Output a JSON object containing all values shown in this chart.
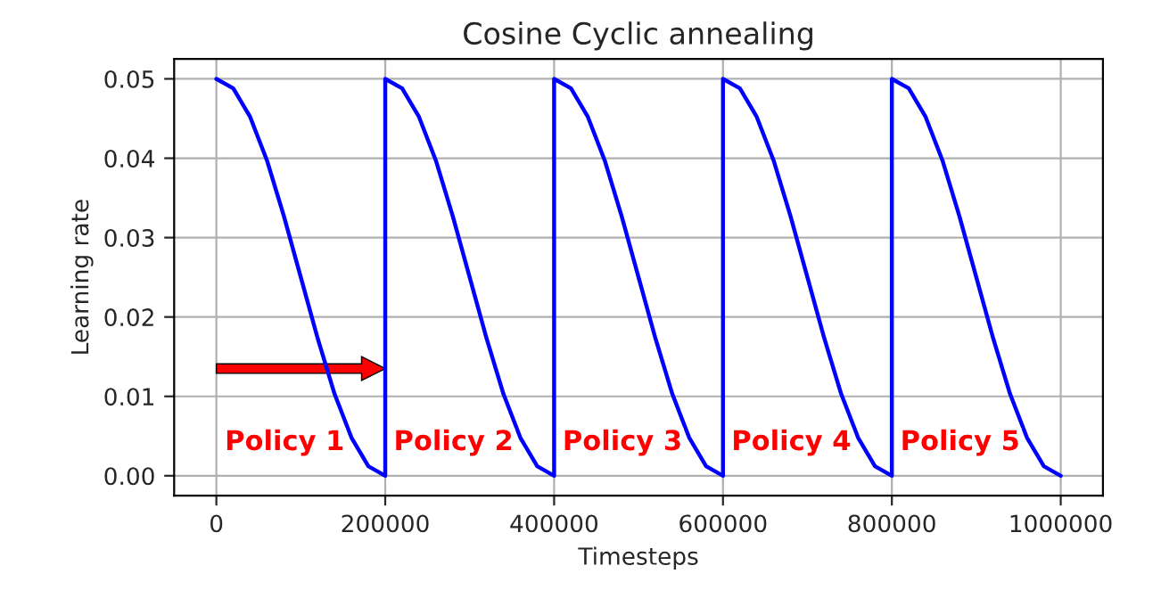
{
  "chart_data": {
    "type": "line",
    "title": "Cosine Cyclic annealing",
    "xlabel": "Timesteps",
    "ylabel": "Learning rate",
    "series": [
      {
        "color": "#0000ff",
        "x": [
          0,
          20000,
          40000,
          60000,
          80000,
          100000,
          120000,
          140000,
          160000,
          180000,
          200000,
          200000,
          220000,
          240000,
          260000,
          280000,
          300000,
          320000,
          340000,
          360000,
          380000,
          400000,
          400000,
          420000,
          440000,
          460000,
          480000,
          500000,
          520000,
          540000,
          560000,
          580000,
          600000,
          600000,
          620000,
          640000,
          660000,
          680000,
          700000,
          720000,
          740000,
          760000,
          780000,
          800000,
          800000,
          820000,
          840000,
          860000,
          880000,
          900000,
          920000,
          940000,
          960000,
          980000,
          1000000
        ],
        "values": [
          0.05,
          0.0488,
          0.0452,
          0.0397,
          0.0327,
          0.025,
          0.0173,
          0.0103,
          0.0048,
          0.0012,
          0,
          0.05,
          0.0488,
          0.0452,
          0.0397,
          0.0327,
          0.025,
          0.0173,
          0.0103,
          0.0048,
          0.0012,
          0,
          0.05,
          0.0488,
          0.0452,
          0.0397,
          0.0327,
          0.025,
          0.0173,
          0.0103,
          0.0048,
          0.0012,
          0,
          0.05,
          0.0488,
          0.0452,
          0.0397,
          0.0327,
          0.025,
          0.0173,
          0.0103,
          0.0048,
          0.0012,
          0,
          0.05,
          0.0488,
          0.0452,
          0.0397,
          0.0327,
          0.025,
          0.0173,
          0.0103,
          0.0048,
          0.0012,
          0
        ]
      }
    ],
    "annotations": [
      "Policy 1",
      "Policy 2",
      "Policy 3",
      "Policy 4",
      "Policy 5"
    ],
    "xlim": [
      -50000,
      1050000
    ],
    "ylim": [
      -0.0025,
      0.0525
    ],
    "xticks": [
      0,
      200000,
      400000,
      600000,
      800000,
      1000000
    ],
    "yticks": [
      {
        "value": 0,
        "label": "0.00"
      },
      {
        "value": 0.01,
        "label": "0.01"
      },
      {
        "value": 0.02,
        "label": "0.02"
      },
      {
        "value": 0.03,
        "label": "0.03"
      },
      {
        "value": 0.04,
        "label": "0.04"
      },
      {
        "value": 0.05,
        "label": "0.05"
      }
    ],
    "grid": true,
    "line_style": "solid",
    "marker": "none"
  }
}
